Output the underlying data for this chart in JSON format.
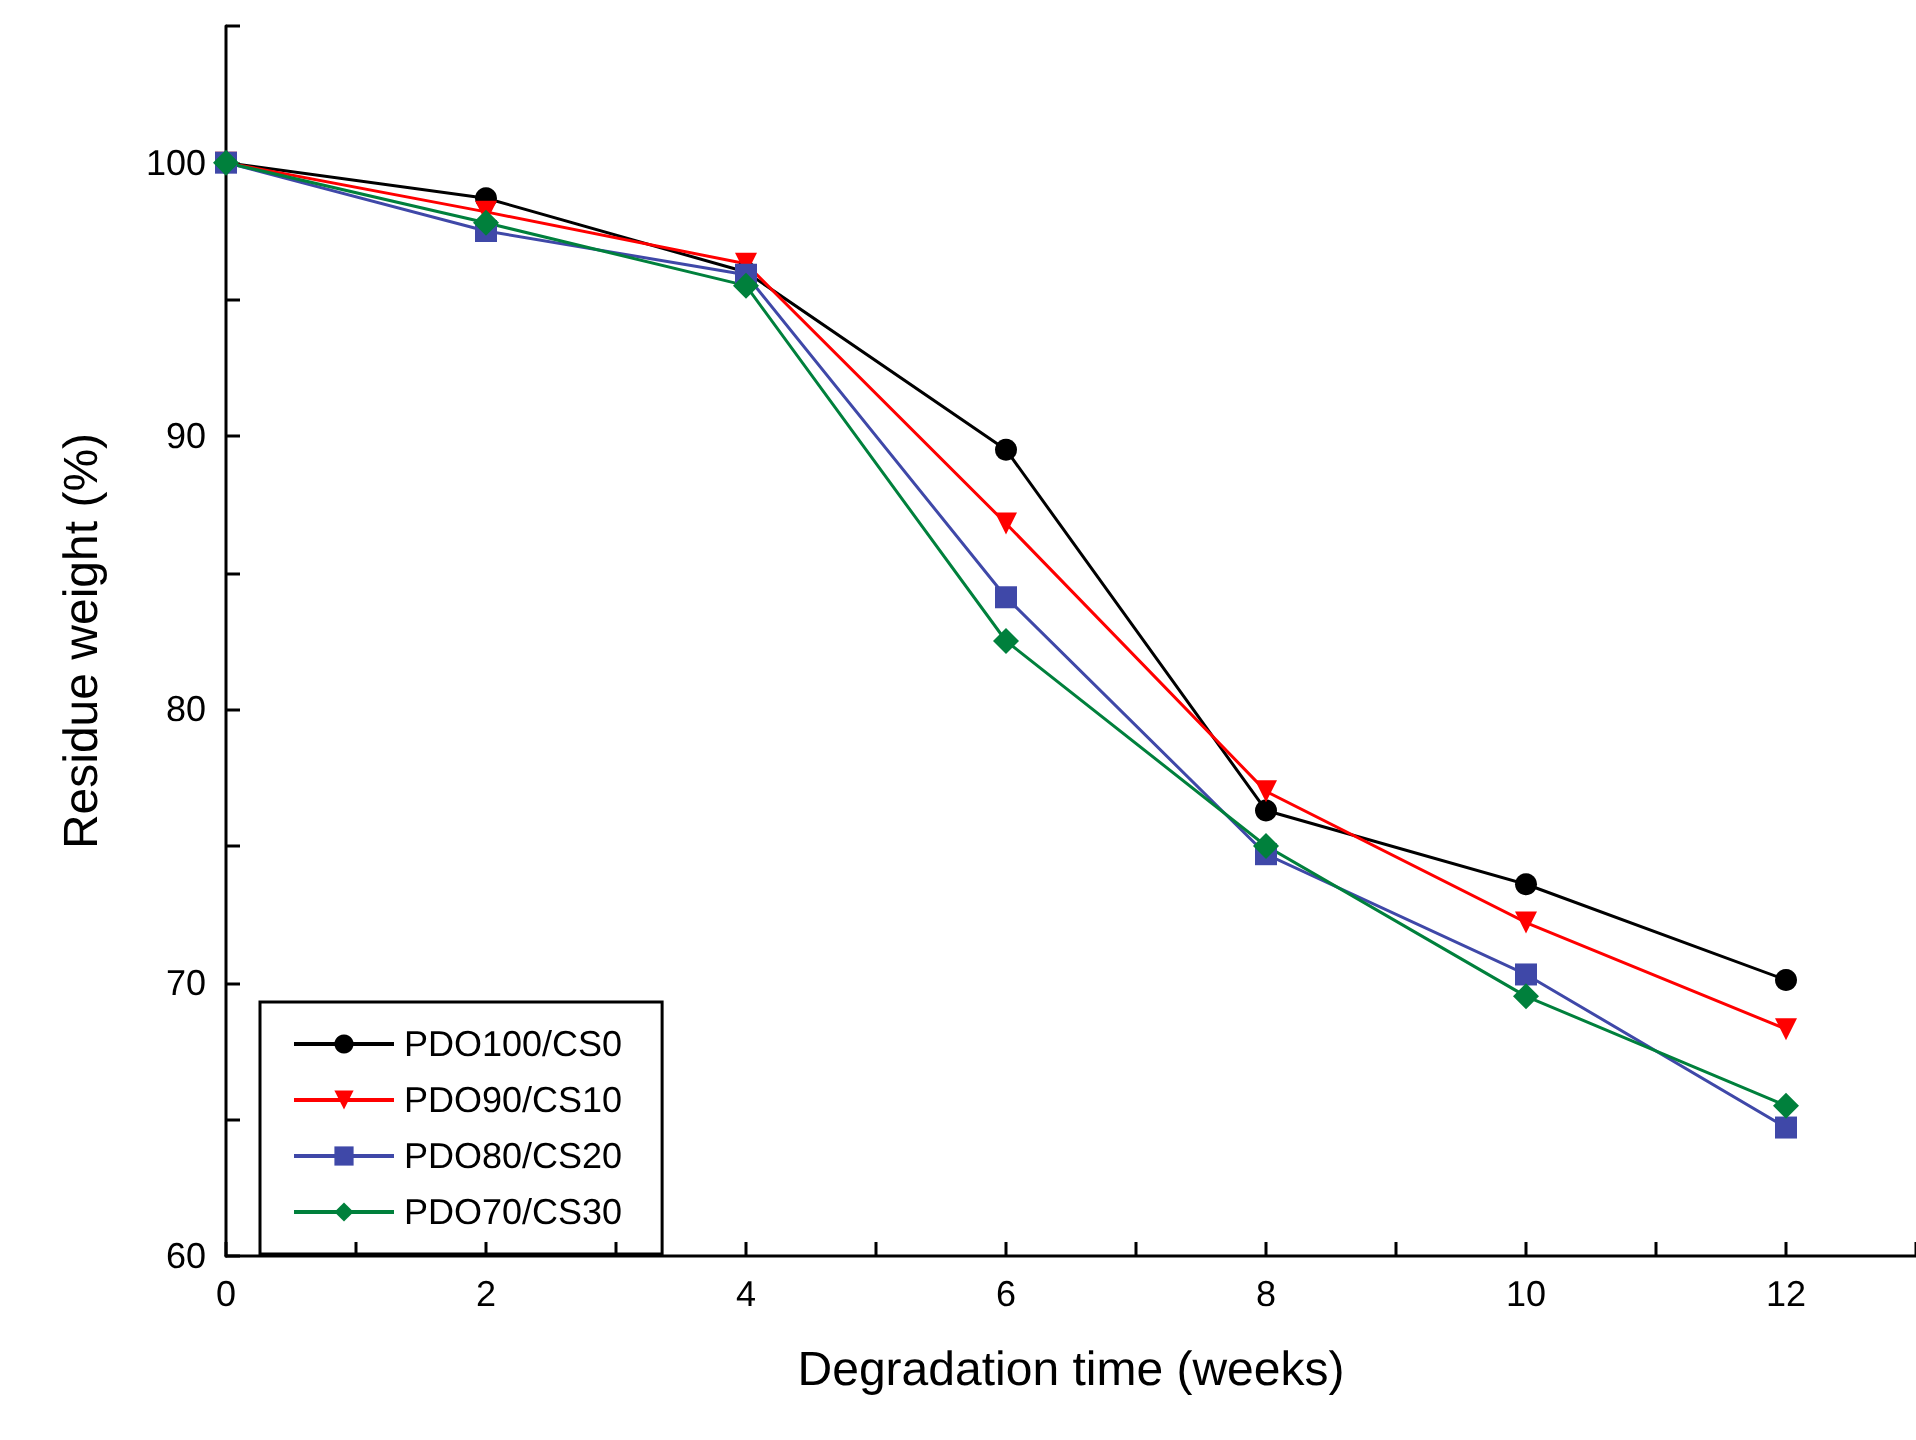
{
  "chart_data": {
    "type": "line",
    "xlabel": "Degradation time (weeks)",
    "ylabel": "Residue weight (%)",
    "x": [
      0,
      2,
      4,
      6,
      8,
      10,
      12
    ],
    "xlim": [
      0,
      13
    ],
    "xticks": [
      0,
      {
        "value": 1,
        "label": null
      },
      2,
      {
        "value": 3,
        "label": null
      },
      4,
      {
        "value": 5,
        "label": null
      },
      6,
      {
        "value": 7,
        "label": null
      },
      8,
      {
        "value": 9,
        "label": null
      },
      10,
      {
        "value": 11,
        "label": null
      },
      12,
      {
        "value": 13,
        "label": null
      }
    ],
    "ylim": [
      60,
      105
    ],
    "yticks": [
      60,
      {
        "value": 65,
        "label": null
      },
      70,
      {
        "value": 75,
        "label": null
      },
      80,
      {
        "value": 85,
        "label": null
      },
      90,
      {
        "value": 95,
        "label": null
      },
      100,
      {
        "value": 105,
        "label": null
      }
    ],
    "grid": false,
    "legend": "bottom left",
    "line_style": "solid",
    "series": [
      {
        "name": "PDO100/CS0",
        "color": "#000000",
        "marker": "circle",
        "values": [
          100,
          98.7,
          96.0,
          89.5,
          76.3,
          73.6,
          70.1
        ]
      },
      {
        "name": "PDO90/CS10",
        "color": "#ff0000",
        "marker": "triangle",
        "values": [
          100,
          98.2,
          96.3,
          86.8,
          77.0,
          72.2,
          68.3
        ]
      },
      {
        "name": "PDO80/CS20",
        "color": "#3f48a8",
        "marker": "square",
        "values": [
          100,
          97.5,
          95.9,
          84.1,
          74.7,
          70.3,
          64.7
        ]
      },
      {
        "name": "PDO70/CS30",
        "color": "#00803c",
        "marker": "diamond",
        "values": [
          100,
          97.8,
          95.5,
          82.5,
          75.0,
          69.5,
          65.5
        ]
      }
    ]
  }
}
